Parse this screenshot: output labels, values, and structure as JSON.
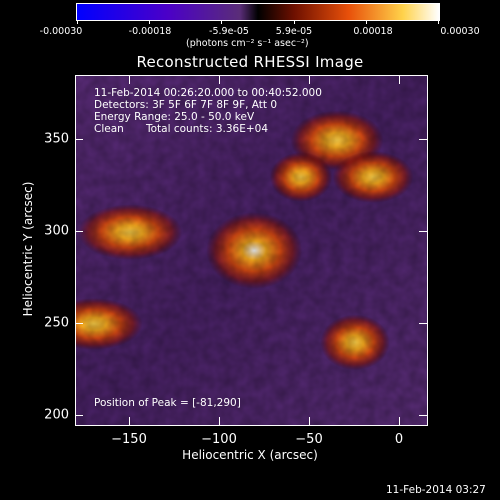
{
  "colorbar": {
    "tick_labels": [
      "-0.00030",
      "-0.00018",
      "-5.9e-05",
      "5.9e-05",
      "0.00018",
      "0.00030"
    ],
    "units_label": "(photons cm⁻² s⁻¹ asec⁻²)"
  },
  "chart_data": {
    "type": "heatmap",
    "title": "Reconstructed RHESSI Image",
    "xlabel": "Heliocentric X (arcsec)",
    "ylabel": "Heliocentric Y (arcsec)",
    "xlim": [
      -180,
      15
    ],
    "ylim": [
      195,
      385
    ],
    "x_ticks": [
      -150,
      -100,
      -50,
      0
    ],
    "y_ticks": [
      200,
      250,
      300,
      350
    ],
    "x_tick_labels": [
      "−150",
      "−100",
      "−50",
      "0"
    ],
    "y_tick_labels": [
      "200",
      "250",
      "300",
      "350"
    ],
    "color_range": [
      -0.0003,
      0.0003
    ],
    "peak": {
      "x": -81,
      "y": 290
    },
    "sources": [
      {
        "x": -81,
        "y": 290,
        "intensity": 1.0
      },
      {
        "x": -35,
        "y": 350,
        "intensity": 0.55
      },
      {
        "x": -150,
        "y": 300,
        "intensity": 0.45
      },
      {
        "x": -25,
        "y": 240,
        "intensity": 0.45
      },
      {
        "x": -15,
        "y": 330,
        "intensity": 0.35
      },
      {
        "x": -170,
        "y": 250,
        "intensity": 0.35
      },
      {
        "x": -55,
        "y": 330,
        "intensity": 0.3
      }
    ],
    "annotations": {
      "time_range": "11-Feb-2014 00:26:20.000 to 00:40:52.000",
      "detectors": "Detectors: 3F 5F 6F 7F 8F 9F, Att 0",
      "energy_range": "Energy Range: 25.0 - 50.0 keV",
      "clean_label": "Clean",
      "total_counts": "Total counts: 3.36E+04",
      "peak_position": "Position of Peak = [-81,290]"
    }
  },
  "footer_timestamp": "11-Feb-2014 03:27"
}
